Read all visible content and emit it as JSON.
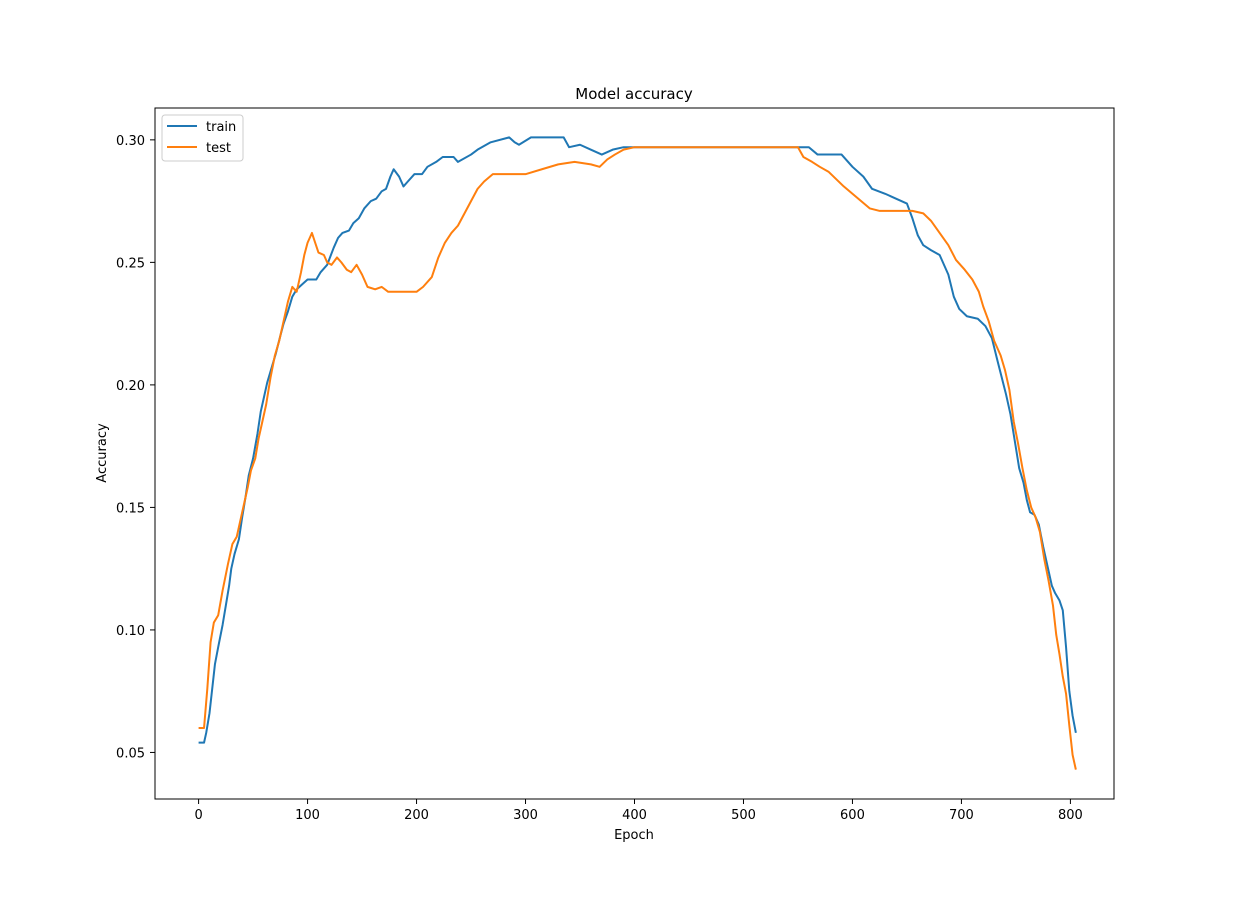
{
  "chart_data": {
    "type": "line",
    "title": "Model accuracy",
    "xlabel": "Epoch",
    "ylabel": "Accuracy",
    "xlim": [
      -40,
      840
    ],
    "ylim": [
      0.031,
      0.313
    ],
    "xticks": [
      0,
      100,
      200,
      300,
      400,
      500,
      600,
      700,
      800
    ],
    "yticks": [
      0.05,
      0.1,
      0.15,
      0.2,
      0.25,
      0.3
    ],
    "xtick_labels": [
      "0",
      "100",
      "200",
      "300",
      "400",
      "500",
      "600",
      "700",
      "800"
    ],
    "ytick_labels": [
      "0.05",
      "0.10",
      "0.15",
      "0.20",
      "0.25",
      "0.30"
    ],
    "grid": false,
    "legend_position": "top-left",
    "series": [
      {
        "name": "train",
        "color": "#1f77b4",
        "points": [
          [
            0,
            0.054
          ],
          [
            5,
            0.054
          ],
          [
            7,
            0.058
          ],
          [
            10,
            0.066
          ],
          [
            15,
            0.086
          ],
          [
            18,
            0.093
          ],
          [
            22,
            0.102
          ],
          [
            25,
            0.11
          ],
          [
            28,
            0.118
          ],
          [
            30,
            0.125
          ],
          [
            33,
            0.131
          ],
          [
            37,
            0.137
          ],
          [
            40,
            0.146
          ],
          [
            43,
            0.154
          ],
          [
            46,
            0.163
          ],
          [
            50,
            0.17
          ],
          [
            54,
            0.18
          ],
          [
            57,
            0.189
          ],
          [
            60,
            0.195
          ],
          [
            63,
            0.201
          ],
          [
            67,
            0.207
          ],
          [
            71,
            0.213
          ],
          [
            75,
            0.22
          ],
          [
            78,
            0.225
          ],
          [
            82,
            0.23
          ],
          [
            86,
            0.236
          ],
          [
            90,
            0.239
          ],
          [
            95,
            0.241
          ],
          [
            100,
            0.243
          ],
          [
            108,
            0.243
          ],
          [
            112,
            0.246
          ],
          [
            118,
            0.249
          ],
          [
            124,
            0.256
          ],
          [
            128,
            0.26
          ],
          [
            132,
            0.262
          ],
          [
            138,
            0.263
          ],
          [
            142,
            0.266
          ],
          [
            147,
            0.268
          ],
          [
            152,
            0.272
          ],
          [
            158,
            0.275
          ],
          [
            163,
            0.276
          ],
          [
            168,
            0.279
          ],
          [
            172,
            0.28
          ],
          [
            176,
            0.285
          ],
          [
            179,
            0.288
          ],
          [
            184,
            0.285
          ],
          [
            188,
            0.281
          ],
          [
            192,
            0.283
          ],
          [
            198,
            0.286
          ],
          [
            205,
            0.286
          ],
          [
            210,
            0.289
          ],
          [
            218,
            0.291
          ],
          [
            224,
            0.293
          ],
          [
            234,
            0.293
          ],
          [
            238,
            0.291
          ],
          [
            250,
            0.294
          ],
          [
            256,
            0.296
          ],
          [
            268,
            0.299
          ],
          [
            285,
            0.301
          ],
          [
            290,
            0.299
          ],
          [
            294,
            0.298
          ],
          [
            305,
            0.301
          ],
          [
            335,
            0.301
          ],
          [
            340,
            0.297
          ],
          [
            350,
            0.298
          ],
          [
            360,
            0.296
          ],
          [
            370,
            0.294
          ],
          [
            380,
            0.296
          ],
          [
            390,
            0.297
          ],
          [
            560,
            0.297
          ],
          [
            568,
            0.294
          ],
          [
            590,
            0.294
          ],
          [
            600,
            0.289
          ],
          [
            610,
            0.285
          ],
          [
            618,
            0.28
          ],
          [
            630,
            0.278
          ],
          [
            640,
            0.276
          ],
          [
            650,
            0.274
          ],
          [
            655,
            0.268
          ],
          [
            660,
            0.261
          ],
          [
            665,
            0.257
          ],
          [
            672,
            0.255
          ],
          [
            680,
            0.253
          ],
          [
            688,
            0.245
          ],
          [
            693,
            0.236
          ],
          [
            698,
            0.231
          ],
          [
            705,
            0.228
          ],
          [
            715,
            0.227
          ],
          [
            722,
            0.224
          ],
          [
            728,
            0.219
          ],
          [
            733,
            0.21
          ],
          [
            737,
            0.203
          ],
          [
            741,
            0.196
          ],
          [
            745,
            0.188
          ],
          [
            749,
            0.177
          ],
          [
            753,
            0.166
          ],
          [
            757,
            0.16
          ],
          [
            760,
            0.153
          ],
          [
            763,
            0.148
          ],
          [
            767,
            0.147
          ],
          [
            771,
            0.143
          ],
          [
            775,
            0.134
          ],
          [
            779,
            0.126
          ],
          [
            783,
            0.118
          ],
          [
            786,
            0.115
          ],
          [
            790,
            0.112
          ],
          [
            793,
            0.108
          ],
          [
            796,
            0.093
          ],
          [
            799,
            0.075
          ],
          [
            802,
            0.065
          ],
          [
            805,
            0.058
          ]
        ]
      },
      {
        "name": "test",
        "color": "#ff7f0e",
        "points": [
          [
            0,
            0.06
          ],
          [
            5,
            0.06
          ],
          [
            8,
            0.076
          ],
          [
            11,
            0.095
          ],
          [
            14,
            0.103
          ],
          [
            18,
            0.106
          ],
          [
            22,
            0.116
          ],
          [
            27,
            0.127
          ],
          [
            31,
            0.135
          ],
          [
            35,
            0.138
          ],
          [
            39,
            0.146
          ],
          [
            42,
            0.152
          ],
          [
            45,
            0.158
          ],
          [
            48,
            0.165
          ],
          [
            52,
            0.17
          ],
          [
            55,
            0.178
          ],
          [
            58,
            0.184
          ],
          [
            62,
            0.192
          ],
          [
            66,
            0.203
          ],
          [
            70,
            0.212
          ],
          [
            74,
            0.218
          ],
          [
            78,
            0.226
          ],
          [
            82,
            0.234
          ],
          [
            86,
            0.24
          ],
          [
            90,
            0.238
          ],
          [
            94,
            0.246
          ],
          [
            97,
            0.253
          ],
          [
            100,
            0.258
          ],
          [
            104,
            0.262
          ],
          [
            107,
            0.258
          ],
          [
            110,
            0.254
          ],
          [
            115,
            0.253
          ],
          [
            118,
            0.25
          ],
          [
            122,
            0.249
          ],
          [
            127,
            0.252
          ],
          [
            131,
            0.25
          ],
          [
            136,
            0.247
          ],
          [
            140,
            0.246
          ],
          [
            145,
            0.249
          ],
          [
            150,
            0.245
          ],
          [
            155,
            0.24
          ],
          [
            162,
            0.239
          ],
          [
            168,
            0.24
          ],
          [
            174,
            0.238
          ],
          [
            190,
            0.238
          ],
          [
            200,
            0.238
          ],
          [
            206,
            0.24
          ],
          [
            214,
            0.244
          ],
          [
            220,
            0.252
          ],
          [
            226,
            0.258
          ],
          [
            232,
            0.262
          ],
          [
            238,
            0.265
          ],
          [
            244,
            0.27
          ],
          [
            250,
            0.275
          ],
          [
            256,
            0.28
          ],
          [
            262,
            0.283
          ],
          [
            270,
            0.286
          ],
          [
            300,
            0.286
          ],
          [
            315,
            0.288
          ],
          [
            330,
            0.29
          ],
          [
            345,
            0.291
          ],
          [
            360,
            0.29
          ],
          [
            368,
            0.289
          ],
          [
            375,
            0.292
          ],
          [
            382,
            0.294
          ],
          [
            390,
            0.296
          ],
          [
            400,
            0.297
          ],
          [
            550,
            0.297
          ],
          [
            555,
            0.293
          ],
          [
            563,
            0.291
          ],
          [
            570,
            0.289
          ],
          [
            578,
            0.287
          ],
          [
            585,
            0.284
          ],
          [
            592,
            0.281
          ],
          [
            600,
            0.278
          ],
          [
            608,
            0.275
          ],
          [
            616,
            0.272
          ],
          [
            625,
            0.271
          ],
          [
            645,
            0.271
          ],
          [
            655,
            0.271
          ],
          [
            665,
            0.27
          ],
          [
            672,
            0.267
          ],
          [
            680,
            0.262
          ],
          [
            688,
            0.257
          ],
          [
            695,
            0.251
          ],
          [
            703,
            0.247
          ],
          [
            710,
            0.243
          ],
          [
            716,
            0.238
          ],
          [
            720,
            0.232
          ],
          [
            725,
            0.226
          ],
          [
            730,
            0.218
          ],
          [
            736,
            0.212
          ],
          [
            740,
            0.206
          ],
          [
            744,
            0.198
          ],
          [
            748,
            0.185
          ],
          [
            752,
            0.176
          ],
          [
            756,
            0.166
          ],
          [
            760,
            0.157
          ],
          [
            764,
            0.15
          ],
          [
            768,
            0.146
          ],
          [
            772,
            0.14
          ],
          [
            776,
            0.129
          ],
          [
            780,
            0.12
          ],
          [
            784,
            0.11
          ],
          [
            787,
            0.098
          ],
          [
            790,
            0.09
          ],
          [
            793,
            0.081
          ],
          [
            796,
            0.074
          ],
          [
            799,
            0.061
          ],
          [
            802,
            0.049
          ],
          [
            805,
            0.043
          ]
        ]
      }
    ]
  }
}
